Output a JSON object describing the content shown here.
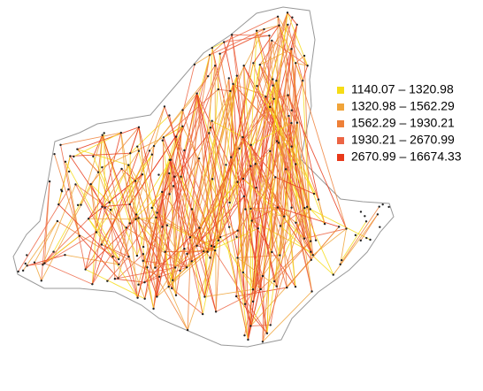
{
  "legend": {
    "items": [
      {
        "label": "1140.07 – 1320.98",
        "color": "#f6dc16"
      },
      {
        "label": "1320.98 – 1562.29",
        "color": "#f0a43a"
      },
      {
        "label": "1562.29 – 1930.21",
        "color": "#ee8038"
      },
      {
        "label": "1930.21 – 2670.99",
        "color": "#ec6544"
      },
      {
        "label": "2670.99 – 16674.33",
        "color": "#e8391a"
      }
    ]
  }
}
